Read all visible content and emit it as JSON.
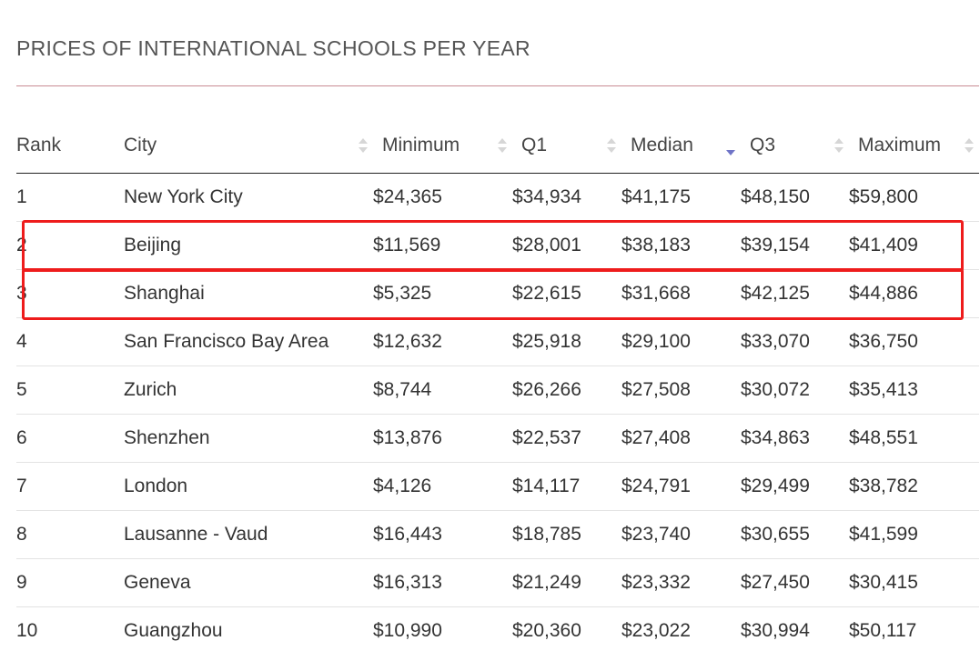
{
  "title": "PRICES OF INTERNATIONAL SCHOOLS PER YEAR",
  "columns": {
    "rank": "Rank",
    "city": "City",
    "minimum": "Minimum",
    "q1": "Q1",
    "median": "Median",
    "q3": "Q3",
    "maximum": "Maximum"
  },
  "sorted_by": "median",
  "sort_direction": "descending",
  "rows": [
    {
      "rank": "1",
      "city": "New York City",
      "minimum": "$24,365",
      "q1": "$34,934",
      "median": "$41,175",
      "q3": "$48,150",
      "maximum": "$59,800"
    },
    {
      "rank": "2",
      "city": "Beijing",
      "minimum": "$11,569",
      "q1": "$28,001",
      "median": "$38,183",
      "q3": "$39,154",
      "maximum": "$41,409"
    },
    {
      "rank": "3",
      "city": "Shanghai",
      "minimum": "$5,325",
      "q1": "$22,615",
      "median": "$31,668",
      "q3": "$42,125",
      "maximum": "$44,886"
    },
    {
      "rank": "4",
      "city": "San Francisco Bay Area",
      "minimum": "$12,632",
      "q1": "$25,918",
      "median": "$29,100",
      "q3": "$33,070",
      "maximum": "$36,750"
    },
    {
      "rank": "5",
      "city": "Zurich",
      "minimum": "$8,744",
      "q1": "$26,266",
      "median": "$27,508",
      "q3": "$30,072",
      "maximum": "$35,413"
    },
    {
      "rank": "6",
      "city": "Shenzhen",
      "minimum": "$13,876",
      "q1": "$22,537",
      "median": "$27,408",
      "q3": "$34,863",
      "maximum": "$48,551"
    },
    {
      "rank": "7",
      "city": "London",
      "minimum": "$4,126",
      "q1": "$14,117",
      "median": "$24,791",
      "q3": "$29,499",
      "maximum": "$38,782"
    },
    {
      "rank": "8",
      "city": "Lausanne - Vaud",
      "minimum": "$16,443",
      "q1": "$18,785",
      "median": "$23,740",
      "q3": "$30,655",
      "maximum": "$41,599"
    },
    {
      "rank": "9",
      "city": "Geneva",
      "minimum": "$16,313",
      "q1": "$21,249",
      "median": "$23,332",
      "q3": "$27,450",
      "maximum": "$30,415"
    },
    {
      "rank": "10",
      "city": "Guangzhou",
      "minimum": "$10,990",
      "q1": "$20,360",
      "median": "$23,022",
      "q3": "$30,994",
      "maximum": "$50,117"
    }
  ],
  "highlighted_rows": [
    "2",
    "3"
  ],
  "colors": {
    "highlight": "#ee1c1c",
    "sort_active": "#6f74c7",
    "title_rule": "#c98b93"
  }
}
